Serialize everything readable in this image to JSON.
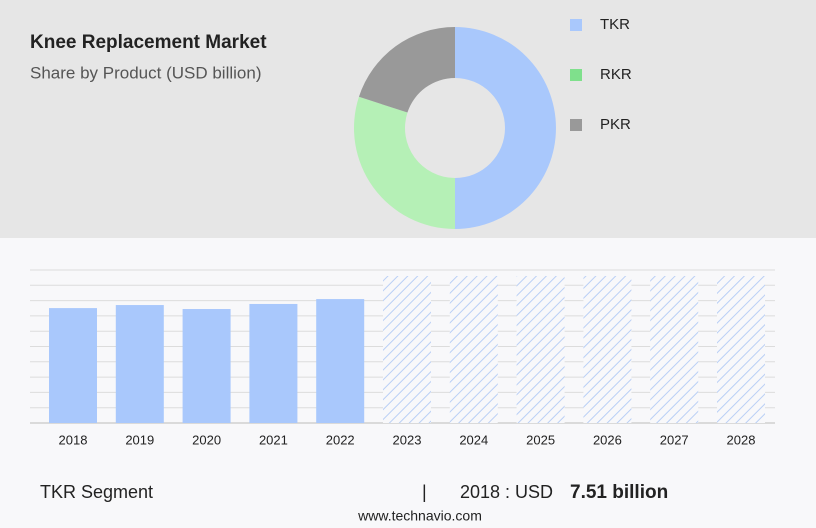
{
  "chart_data": [
    {
      "type": "pie",
      "title": "Knee Replacement Market",
      "subtitle": "Share by Product (USD billion)",
      "categories": [
        "TKR",
        "RKR",
        "PKR"
      ],
      "values": [
        50,
        30,
        20
      ],
      "colors": [
        "#a9c8fc",
        "#b5f0b6",
        "#999999"
      ],
      "legend_colors": [
        "#a9c8fc",
        "#7fe08c",
        "#999999"
      ],
      "hole": true
    },
    {
      "type": "bar",
      "categories": [
        "2018",
        "2019",
        "2020",
        "2021",
        "2022",
        "2023",
        "2024",
        "2025",
        "2026",
        "2027",
        "2028"
      ],
      "values": [
        7.51,
        7.71,
        7.45,
        7.78,
        8.1,
        null,
        null,
        null,
        null,
        null,
        null
      ],
      "color": "#a9c8fc",
      "ylim": [
        0,
        10
      ],
      "yticks": [
        0,
        1,
        2,
        3,
        4,
        5,
        6,
        7,
        8,
        9,
        10
      ],
      "grid": true
    }
  ],
  "footer": {
    "segment": "TKR Segment",
    "separator": "|",
    "year_unit": "2018 : USD",
    "amount": "7.51 billion",
    "source": "www.technavio.com"
  }
}
